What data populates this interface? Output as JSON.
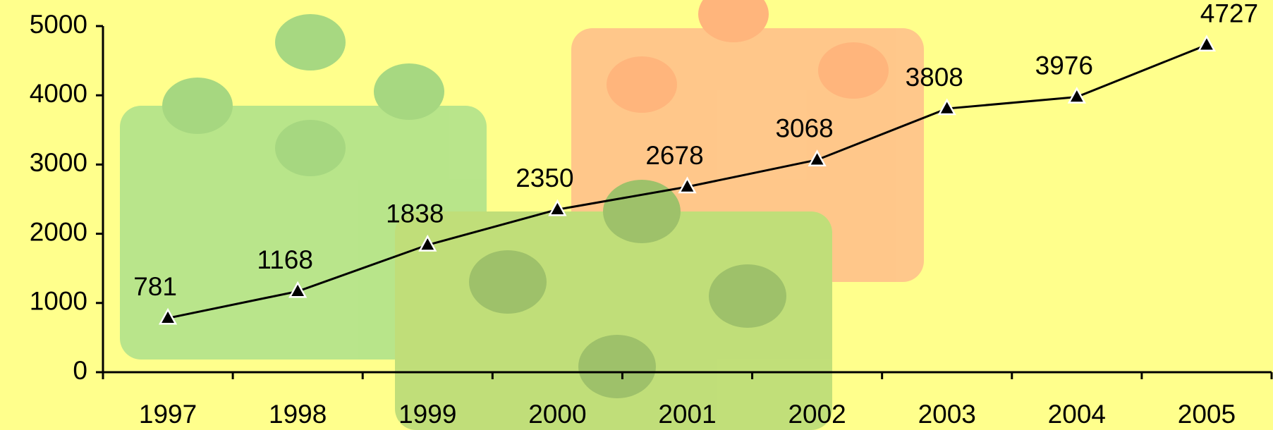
{
  "chart_data": {
    "type": "line",
    "categories": [
      "1997",
      "1998",
      "1999",
      "2000",
      "2001",
      "2002",
      "2003",
      "2004",
      "2005"
    ],
    "values": [
      781,
      1168,
      1838,
      2350,
      2678,
      3068,
      3808,
      3976,
      4727
    ],
    "color": "#000000",
    "ylim": [
      0,
      5000
    ],
    "yticks": [
      0,
      1000,
      2000,
      3000,
      4000,
      5000
    ]
  }
}
